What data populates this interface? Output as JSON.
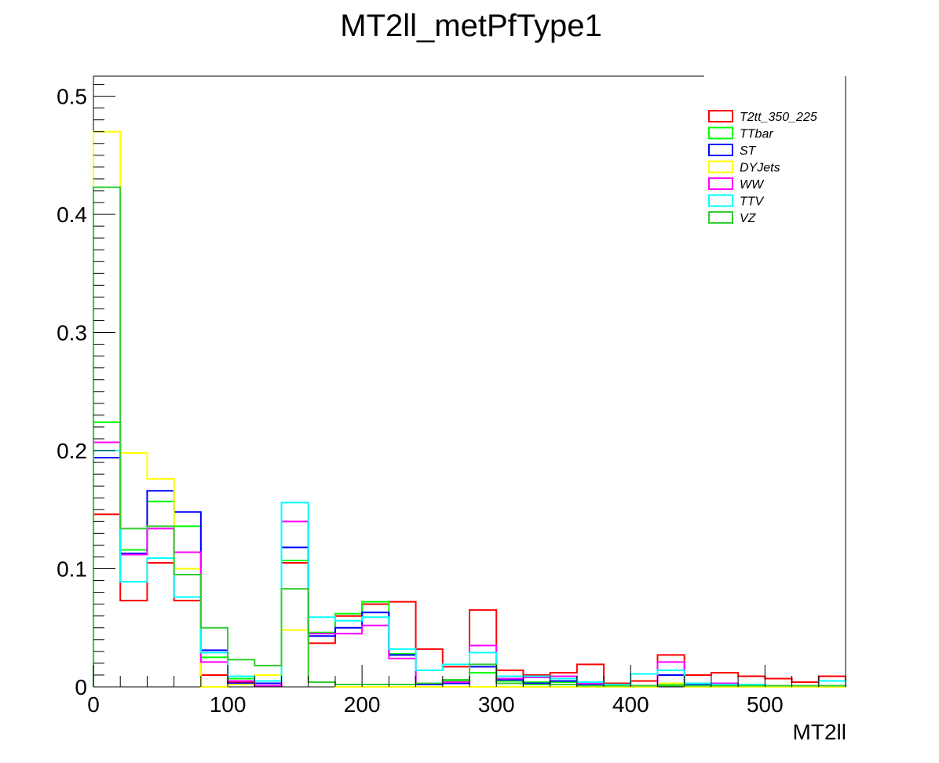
{
  "chart_data": {
    "type": "step-histogram",
    "title": "MT2ll_metPfType1",
    "xlabel": "MT2ll",
    "ylabel": "",
    "xlim": [
      0,
      560
    ],
    "ylim": [
      0,
      0.517
    ],
    "bin_width": 20,
    "x_ticks": [
      0,
      100,
      200,
      300,
      400,
      500
    ],
    "x_tick_labels": [
      "0",
      "100",
      "200",
      "300",
      "400",
      "500"
    ],
    "y_ticks": [
      0,
      0.1,
      0.2,
      0.3,
      0.4,
      0.5
    ],
    "y_tick_labels": [
      "0",
      "0.1",
      "0.2",
      "0.3",
      "0.4",
      "0.5"
    ],
    "legend_position": "top-right",
    "grid": false,
    "bin_edges": [
      0,
      20,
      40,
      60,
      80,
      100,
      120,
      140,
      160,
      180,
      200,
      220,
      240,
      260,
      280,
      300,
      320,
      340,
      360,
      380,
      400,
      420,
      440,
      460,
      480,
      500,
      520,
      540,
      560
    ],
    "series": [
      {
        "name": "T2tt_350_225",
        "color": "#ff0000",
        "values": [
          0.146,
          0.073,
          0.105,
          0.073,
          0.01,
          0.004,
          0.005,
          0.105,
          0.037,
          0.06,
          0.07,
          0.072,
          0.032,
          0.017,
          0.065,
          0.014,
          0.01,
          0.012,
          0.019,
          0.003,
          0.005,
          0.027,
          0.01,
          0.012,
          0.009,
          0.007,
          0.004,
          0.009
        ]
      },
      {
        "name": "TTbar",
        "color": "#00ff00",
        "values": [
          0.224,
          0.116,
          0.157,
          0.136,
          0.025,
          0.007,
          0.01,
          0.107,
          0.046,
          0.062,
          0.072,
          0.028,
          0.003,
          0.005,
          0.012,
          0.005,
          0.004,
          0.004,
          0.002,
          0.001,
          0.001,
          0.002,
          0.001,
          0.001,
          0.001,
          0.001,
          0.001,
          0.001
        ]
      },
      {
        "name": "ST",
        "color": "#0000ff",
        "values": [
          0.194,
          0.113,
          0.166,
          0.148,
          0.031,
          0.003,
          0.003,
          0.118,
          0.043,
          0.05,
          0.063,
          0.027,
          0.002,
          0.003,
          0.017,
          0.006,
          0.003,
          0.005,
          0.002,
          0.002,
          0.001,
          0.01,
          0.002,
          0.002,
          0.001,
          0.001,
          0.001,
          0.001
        ]
      },
      {
        "name": "DYJets",
        "color": "#ffff00",
        "values": [
          0.47,
          0.198,
          0.176,
          0.1,
          0.0,
          0.002,
          0.01,
          0.048,
          0.004,
          0.0,
          0.0,
          0.0,
          0.0,
          0.0,
          0.0,
          0.0,
          0.0,
          0.0,
          0.0,
          0.0,
          0.0,
          0.003,
          0.0,
          0.0,
          0.0,
          0.0,
          0.0,
          0.0
        ]
      },
      {
        "name": "WW",
        "color": "#ff00ff",
        "values": [
          0.207,
          0.112,
          0.134,
          0.114,
          0.021,
          0.005,
          0.001,
          0.14,
          0.045,
          0.045,
          0.052,
          0.024,
          0.003,
          0.004,
          0.035,
          0.007,
          0.008,
          0.009,
          0.003,
          0.001,
          0.001,
          0.021,
          0.003,
          0.003,
          0.001,
          0.001,
          0.001,
          0.001
        ]
      },
      {
        "name": "TTV",
        "color": "#00ffff",
        "values": [
          0.2,
          0.089,
          0.109,
          0.076,
          0.029,
          0.009,
          0.005,
          0.156,
          0.059,
          0.056,
          0.059,
          0.032,
          0.014,
          0.019,
          0.029,
          0.009,
          0.009,
          0.007,
          0.004,
          0.002,
          0.011,
          0.014,
          0.003,
          0.002,
          0.002,
          0.001,
          0.001,
          0.005
        ]
      },
      {
        "name": "VZ",
        "color": "#33cc33",
        "values": [
          0.423,
          0.134,
          0.136,
          0.095,
          0.05,
          0.023,
          0.018,
          0.083,
          0.004,
          0.002,
          0.002,
          0.002,
          0.003,
          0.006,
          0.019,
          0.003,
          0.002,
          0.002,
          0.001,
          0.001,
          0.001,
          0.001,
          0.001,
          0.001,
          0.001,
          0.001,
          0.001,
          0.001
        ]
      }
    ]
  }
}
